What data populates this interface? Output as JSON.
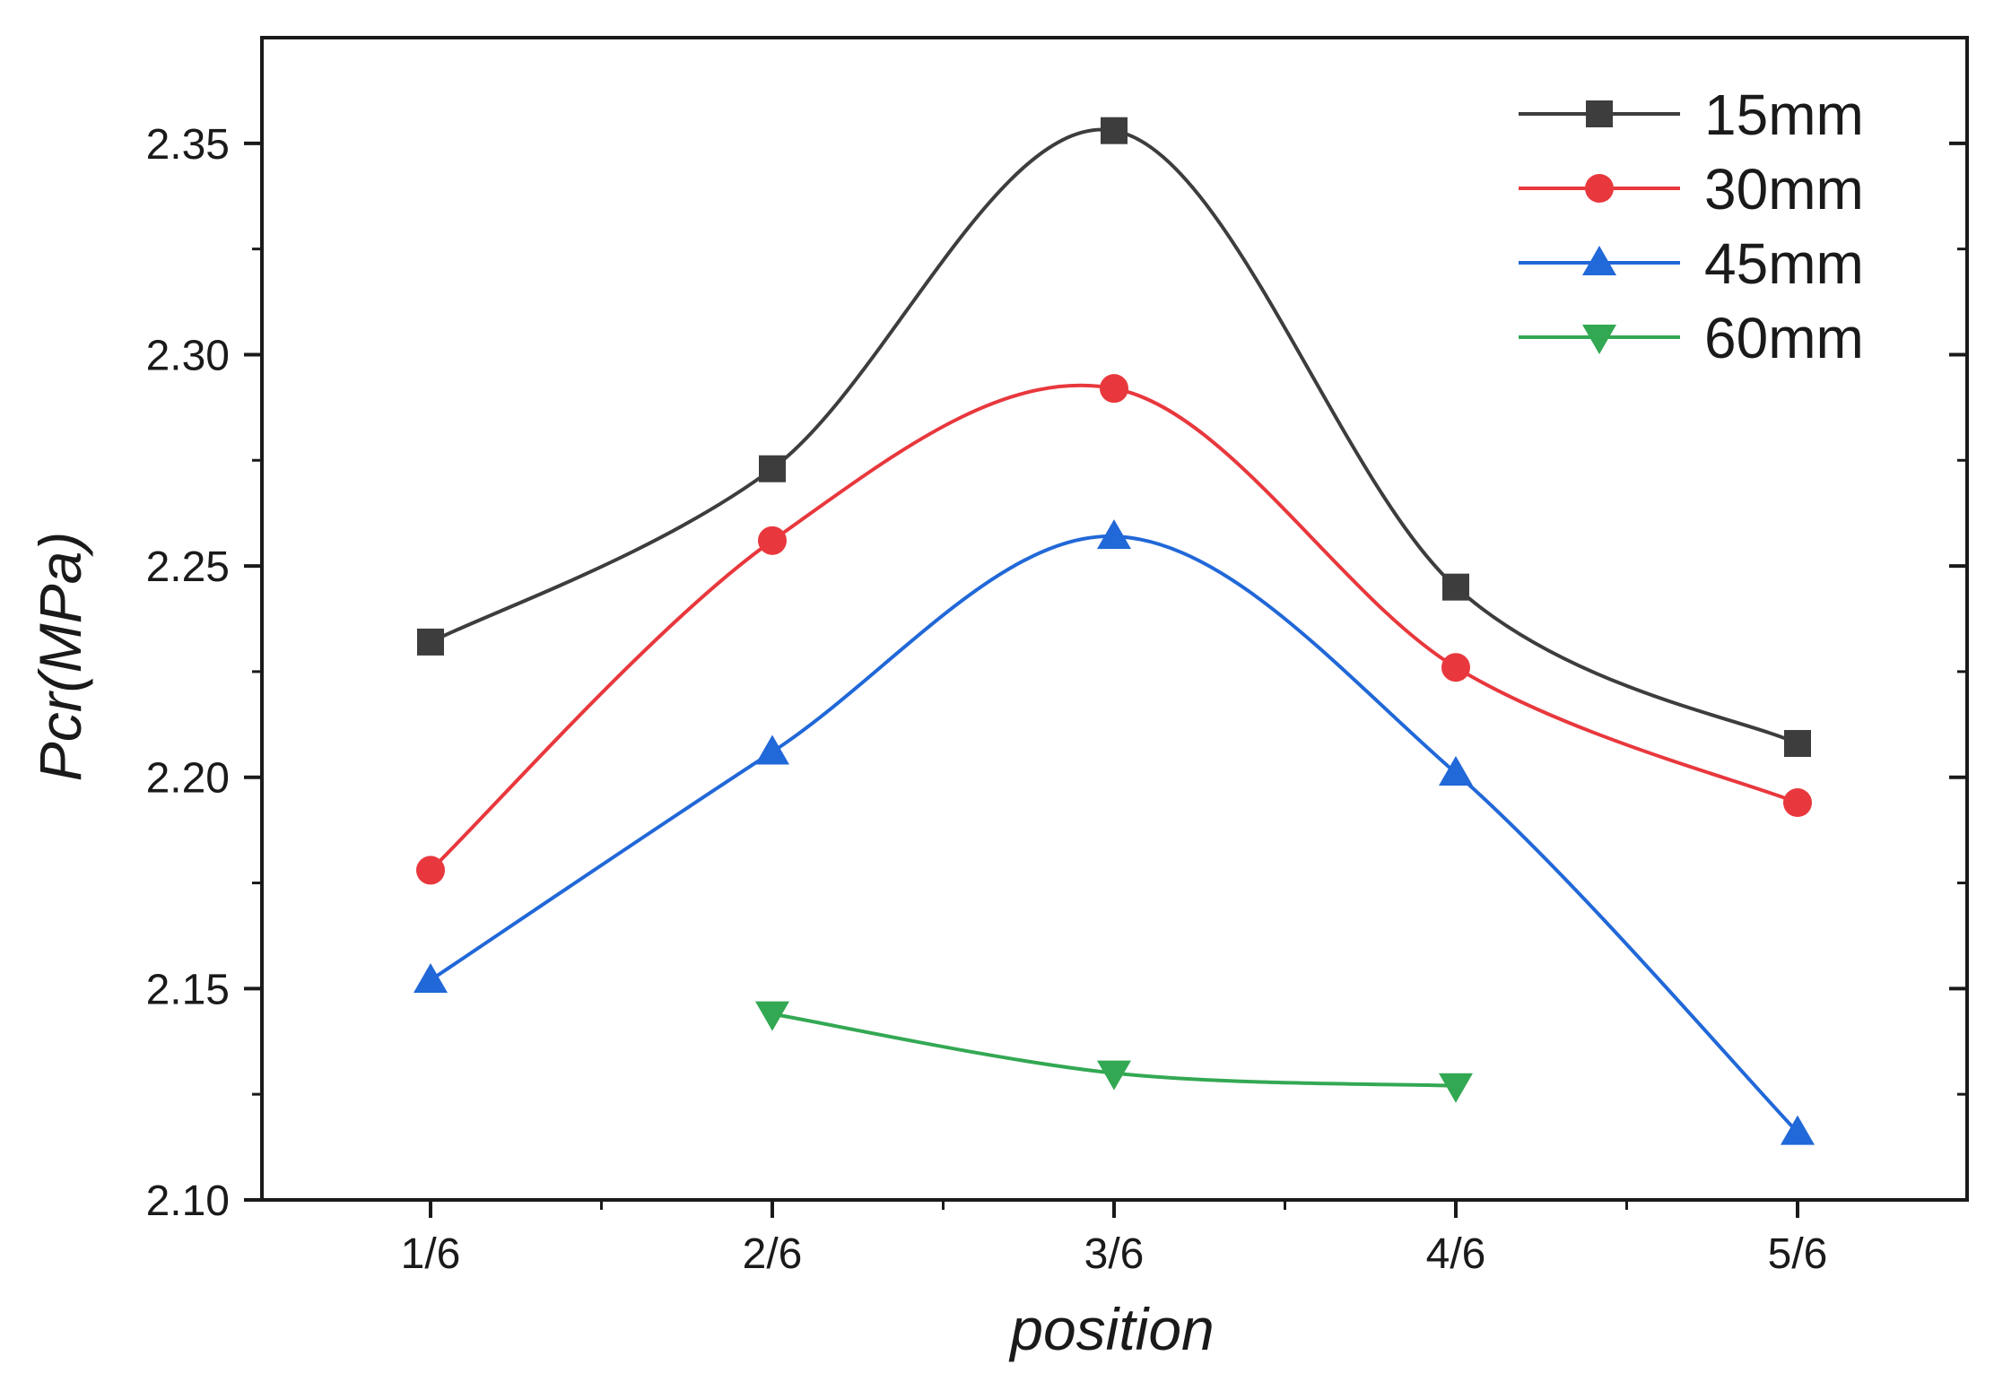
{
  "chart_data": {
    "type": "line",
    "title": "",
    "xlabel": "position",
    "ylabel": "Pcr(MPa)",
    "categories": [
      "1/6",
      "2/6",
      "3/6",
      "4/6",
      "5/6"
    ],
    "ylim": [
      2.1,
      2.375
    ],
    "yticks": [
      2.1,
      2.15,
      2.2,
      2.25,
      2.3,
      2.35
    ],
    "ytick_labels": [
      "2.10",
      "2.15",
      "2.20",
      "2.25",
      "2.30",
      "2.35"
    ],
    "grid": false,
    "legend_position": "top-right",
    "series": [
      {
        "name": "15mm",
        "color": "#3d3d3d",
        "marker": "square",
        "values": [
          2.232,
          2.273,
          2.353,
          2.245,
          2.208
        ]
      },
      {
        "name": "30mm",
        "color": "#e8383d",
        "marker": "circle",
        "values": [
          2.178,
          2.256,
          2.292,
          2.226,
          2.194
        ]
      },
      {
        "name": "45mm",
        "color": "#2168d8",
        "marker": "triangle-up",
        "values": [
          2.152,
          2.206,
          2.257,
          2.201,
          2.116
        ]
      },
      {
        "name": "60mm",
        "color": "#33a853",
        "marker": "triangle-down",
        "values": [
          null,
          2.144,
          2.13,
          2.127,
          null
        ]
      }
    ]
  }
}
